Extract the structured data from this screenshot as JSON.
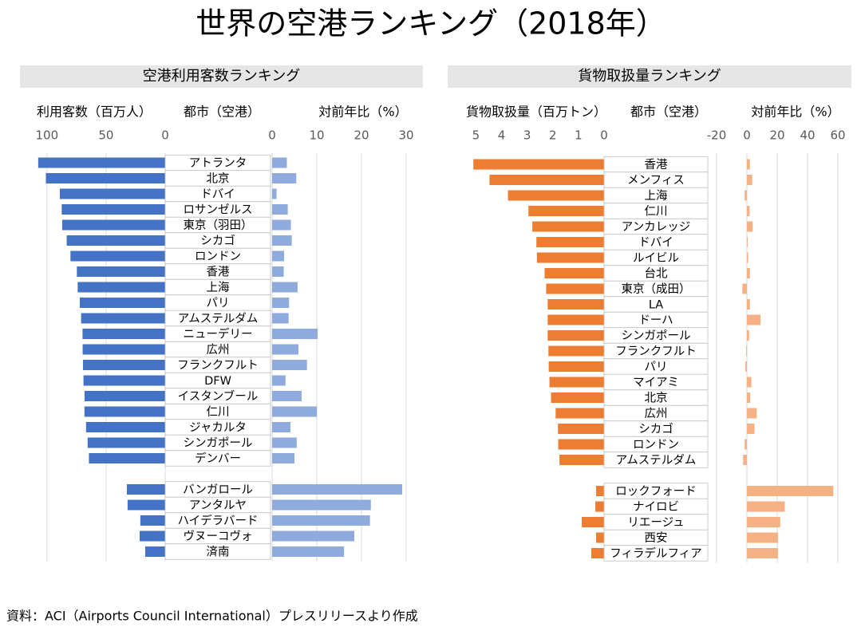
{
  "title": "世界の空港ランキング（2018年）",
  "source": "資料：ACI（Airports Council International）プレスリリースより作成",
  "chart_data": [
    {
      "type": "bar",
      "orientation": "horizontal",
      "title": "空港利用客数ランキング",
      "category_label": "都市（空港）",
      "categories": [
        "アトランタ",
        "北京",
        "ドバイ",
        "ロサンゼルス",
        "東京（羽田）",
        "シカゴ",
        "ロンドン",
        "香港",
        "上海",
        "パリ",
        "アムステルダム",
        "ニューデリー",
        "広州",
        "フランクフルト",
        "DFW",
        "イスタンブール",
        "仁川",
        "ジャカルタ",
        "シンガポール",
        "デンバー",
        "バンガロール",
        "アンタルヤ",
        "ハイデラバード",
        "ヴヌーコヴォ",
        "済南"
      ],
      "series": [
        {
          "name": "利用客数（百万人）",
          "color": "#4472c4",
          "xlim": [
            110,
            0
          ],
          "xticks": [
            100,
            50,
            0
          ],
          "grid": true,
          "values": [
            107.4,
            100.9,
            89.1,
            87.5,
            87.1,
            83.3,
            80.1,
            74.7,
            74.0,
            72.2,
            71.1,
            69.9,
            69.8,
            69.5,
            69.1,
            68.2,
            68.3,
            66.9,
            65.6,
            64.5,
            32.4,
            31.8,
            21.0,
            21.6,
            16.9
          ]
        },
        {
          "name": "対前年比（%）",
          "color": "#8faadc",
          "xlim": [
            0,
            30
          ],
          "xticks": [
            0,
            10,
            20,
            30
          ],
          "grid": true,
          "values": [
            3.3,
            5.4,
            1.0,
            3.5,
            4.2,
            4.4,
            2.7,
            2.6,
            5.7,
            3.8,
            3.7,
            10.2,
            5.9,
            7.8,
            3.0,
            6.6,
            10.0,
            4.1,
            5.5,
            5.0,
            29.1,
            22.1,
            21.9,
            18.4,
            16.1
          ]
        }
      ]
    },
    {
      "type": "bar",
      "orientation": "horizontal",
      "title": "貨物取扱量ランキング",
      "category_label": "都市（空港）",
      "categories": [
        "香港",
        "メンフィス",
        "上海",
        "仁川",
        "アンカレッジ",
        "ドバイ",
        "ルイビル",
        "台北",
        "東京（成田）",
        "LA",
        "ドーハ",
        "シンガポール",
        "フランクフルト",
        "パリ",
        "マイアミ",
        "北京",
        "広州",
        "シカゴ",
        "ロンドン",
        "アムステルダム",
        "ロックフォード",
        "ナイロビ",
        "リエージュ",
        "西安",
        "フィラデルフィア"
      ],
      "series": [
        {
          "name": "貨物取扱量（百万トン）",
          "color": "#ed7d31",
          "xlim": [
            5.2,
            0
          ],
          "xticks": [
            5,
            4,
            3,
            2,
            1,
            0
          ],
          "grid": false,
          "values": [
            5.1,
            4.47,
            3.75,
            2.95,
            2.8,
            2.64,
            2.62,
            2.32,
            2.26,
            2.2,
            2.2,
            2.2,
            2.17,
            2.16,
            2.13,
            2.07,
            1.89,
            1.8,
            1.79,
            1.74,
            0.31,
            0.34,
            0.87,
            0.31,
            0.5
          ]
        },
        {
          "name": "対前年比（%）",
          "color": "#f4b183",
          "xlim": [
            -20,
            60
          ],
          "xticks": [
            -20,
            0,
            20,
            40,
            60
          ],
          "grid": true,
          "values": [
            2.0,
            3.5,
            -1.5,
            1.8,
            3.8,
            0.5,
            0.8,
            2.0,
            -3.0,
            2.0,
            9.0,
            1.5,
            -0.5,
            -1.0,
            3.0,
            2.2,
            6.5,
            5.0,
            -1.5,
            -2.5,
            57.0,
            25.0,
            22.0,
            20.5,
            20.5
          ]
        }
      ]
    }
  ]
}
